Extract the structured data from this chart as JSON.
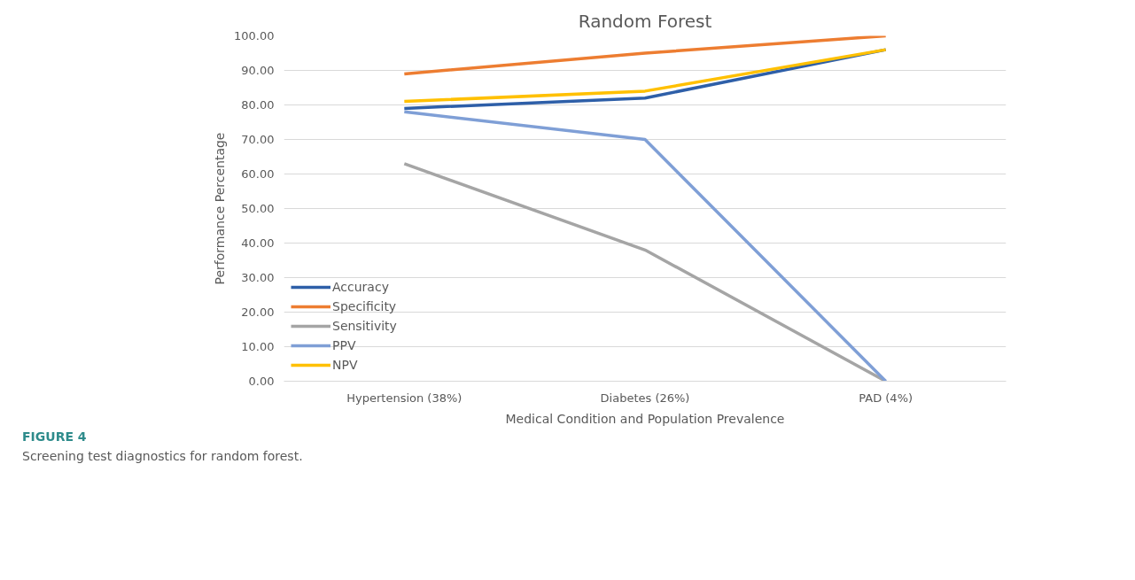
{
  "chart_data": {
    "type": "line",
    "title": "Random Forest",
    "xlabel": "Medical Condition and Population Prevalence",
    "ylabel": "Performance Percentage",
    "categories": [
      "Hypertension (38%)",
      "Diabetes (26%)",
      "PAD (4%)"
    ],
    "series": [
      {
        "name": "Accuracy",
        "color": "#2e5fa8",
        "values": [
          79,
          82,
          96
        ]
      },
      {
        "name": "Specificity",
        "color": "#ed7d31",
        "values": [
          89,
          95,
          100
        ]
      },
      {
        "name": "Sensitivity",
        "color": "#a5a5a5",
        "values": [
          63,
          38,
          0
        ]
      },
      {
        "name": "PPV",
        "color": "#7f9fd6",
        "values": [
          78,
          70,
          0
        ]
      },
      {
        "name": "NPV",
        "color": "#ffc000",
        "values": [
          81,
          84,
          96
        ]
      }
    ],
    "ylim": [
      0,
      100
    ],
    "yticks": [
      {
        "value": 0,
        "label": "0.00"
      },
      {
        "value": 10,
        "label": "10.00"
      },
      {
        "value": 20,
        "label": "20.00"
      },
      {
        "value": 30,
        "label": "30.00"
      },
      {
        "value": 40,
        "label": "40.00"
      },
      {
        "value": 50,
        "label": "50.00"
      },
      {
        "value": 60,
        "label": "60.00"
      },
      {
        "value": 70,
        "label": "70.00"
      },
      {
        "value": 80,
        "label": "80.00"
      },
      {
        "value": 90,
        "label": "90.00"
      },
      {
        "value": 100,
        "label": "100.00"
      }
    ],
    "grid": "y",
    "legend": "bottom left",
    "marker": "none",
    "line_style": "solid",
    "annotations": [
      "FIGURE 4",
      "Screening test diagnostics for random forest."
    ]
  }
}
